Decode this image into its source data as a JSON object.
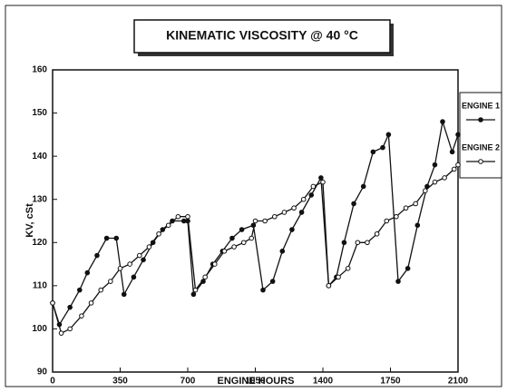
{
  "chart_data": {
    "type": "line",
    "title": "KINEMATIC VISCOSITY @ 40 °C",
    "x_label": "ENGINE HOURS",
    "y_label": "KV, cSt",
    "xlim": [
      0,
      2100
    ],
    "xticks": [
      0,
      350,
      700,
      1050,
      1400,
      1750,
      2100
    ],
    "ylim": [
      90,
      160
    ],
    "yticks": [
      90,
      100,
      110,
      120,
      130,
      140,
      150,
      160
    ],
    "legend": "right",
    "series": [
      {
        "name": "ENGINE 1",
        "color": "#111111",
        "marker": "filled",
        "x": [
          0,
          35,
          90,
          140,
          180,
          230,
          280,
          330,
          370,
          420,
          470,
          520,
          570,
          620,
          680,
          700,
          730,
          780,
          830,
          880,
          930,
          980,
          1040,
          1090,
          1140,
          1190,
          1240,
          1290,
          1340,
          1390,
          1430,
          1470,
          1510,
          1560,
          1610,
          1660,
          1710,
          1740,
          1790,
          1840,
          1890,
          1940,
          1980,
          2020,
          2070,
          2100
        ],
        "values": [
          106,
          101,
          105,
          109,
          113,
          117,
          121,
          121,
          108,
          112,
          116,
          120,
          123,
          125,
          125,
          125,
          108,
          111,
          115,
          118,
          121,
          123,
          124,
          109,
          111,
          118,
          123,
          127,
          131,
          135,
          110,
          112,
          120,
          129,
          133,
          141,
          142,
          145,
          111,
          114,
          124,
          133,
          138,
          148,
          141,
          145
        ]
      },
      {
        "name": "ENGINE 2",
        "color": "#111111",
        "marker": "open",
        "x": [
          0,
          45,
          90,
          150,
          200,
          250,
          300,
          350,
          400,
          450,
          500,
          550,
          600,
          650,
          700,
          740,
          790,
          840,
          890,
          940,
          990,
          1030,
          1050,
          1100,
          1150,
          1200,
          1250,
          1300,
          1350,
          1400,
          1430,
          1480,
          1530,
          1580,
          1630,
          1680,
          1730,
          1780,
          1830,
          1880,
          1930,
          1980,
          2030,
          2080,
          2100
        ],
        "values": [
          106,
          99,
          100,
          103,
          106,
          109,
          111,
          114,
          115,
          117,
          119,
          122,
          124,
          126,
          126,
          109,
          112,
          115,
          118,
          119,
          120,
          121,
          125,
          125,
          126,
          127,
          128,
          130,
          133,
          134,
          110,
          112,
          114,
          120,
          120,
          122,
          125,
          126,
          128,
          129,
          132,
          134,
          135,
          137,
          138
        ]
      }
    ]
  }
}
